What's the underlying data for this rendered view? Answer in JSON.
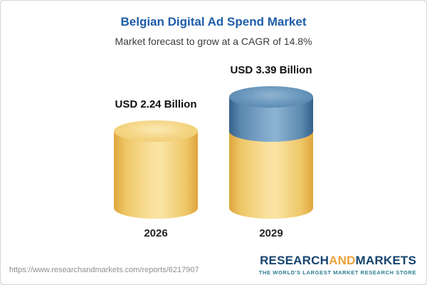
{
  "header": {
    "title": "Belgian Digital Ad Spend Market",
    "subtitle": "Market forecast to grow at a CAGR of 14.8%"
  },
  "chart_data": {
    "type": "bar",
    "variant": "3d-cylinder",
    "title": "Belgian Digital Ad Spend Market",
    "subtitle": "Market forecast to grow at a CAGR of 14.8%",
    "categories": [
      "2026",
      "2029"
    ],
    "values": [
      2.24,
      3.39
    ],
    "value_labels": [
      "USD 2.24 Billion",
      "USD 3.39 Billion"
    ],
    "unit": "USD Billion",
    "cagr": "14.8%",
    "legend": "none",
    "grid": "off",
    "colors": {
      "base_segment": "#f0cd6e",
      "growth_segment": "#6694ba",
      "title_text": "#1e5da8"
    },
    "notes": "2029 bar shows base value in yellow with incremental growth segment in blue on top"
  },
  "footer": {
    "url": "https://www.researchandmarkets.com/reports/6217907",
    "logo": {
      "research": "RESEARCH",
      "and": "AND",
      "markets": "MARKETS",
      "tagline": "THE WORLD'S LARGEST MARKET RESEARCH STORE"
    }
  }
}
